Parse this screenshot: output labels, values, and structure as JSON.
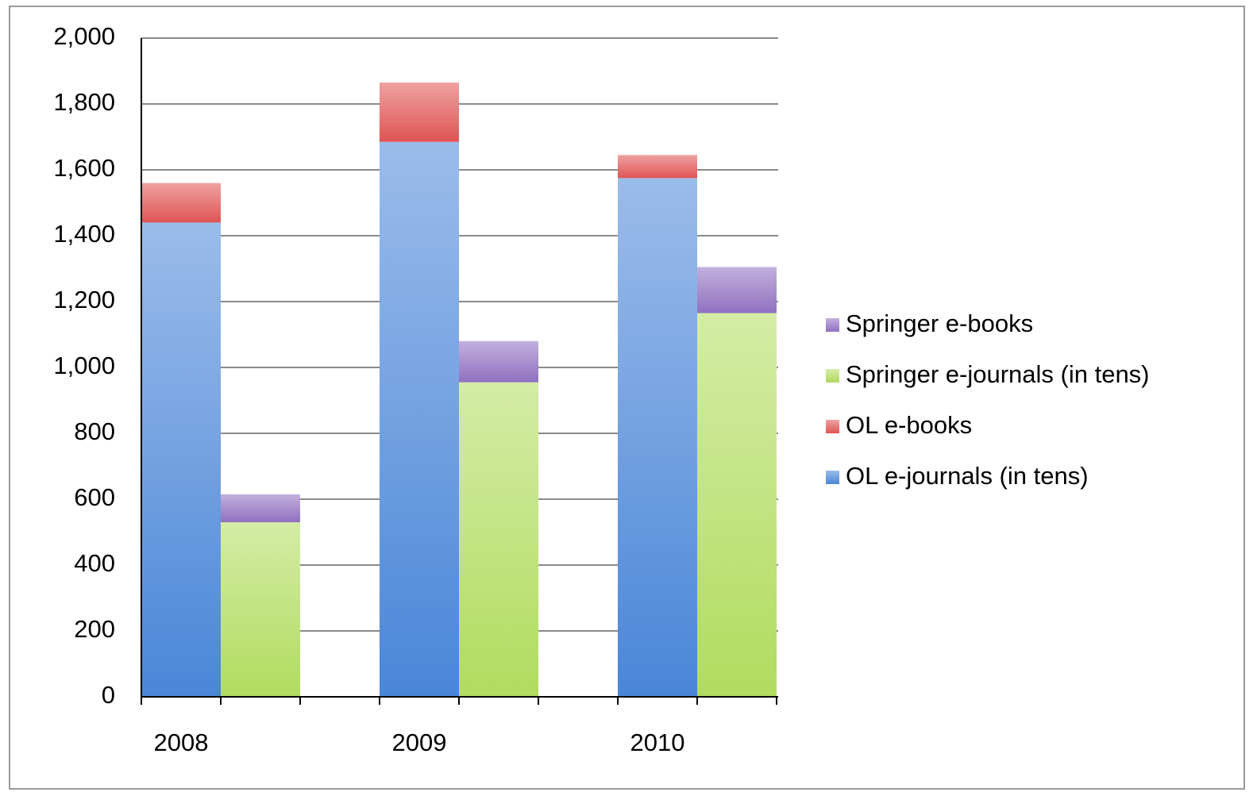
{
  "chart_data": {
    "type": "grouped-stacked-bar",
    "categories": [
      "2008",
      "2009",
      "2010"
    ],
    "stacks": [
      [
        {
          "name": "OL e-journals (in tens)",
          "color": "#4a86d8",
          "values": [
            1440,
            1685,
            1575
          ]
        },
        {
          "name": "OL e-books",
          "color": "#e05454",
          "values": [
            120,
            180,
            70
          ]
        }
      ],
      [
        {
          "name": "Springer e-journals (in tens)",
          "color": "#b0dc5e",
          "values": [
            530,
            955,
            1165
          ]
        },
        {
          "name": "Springer e-books",
          "color": "#9070c0",
          "values": [
            85,
            125,
            140
          ]
        }
      ]
    ],
    "ylim": [
      0,
      2000
    ],
    "yticks": [
      {
        "value": 0,
        "label": "0"
      },
      {
        "value": 200,
        "label": "200"
      },
      {
        "value": 400,
        "label": "400"
      },
      {
        "value": 600,
        "label": "600"
      },
      {
        "value": 800,
        "label": "800"
      },
      {
        "value": 1000,
        "label": "1,000"
      },
      {
        "value": 1200,
        "label": "1,200"
      },
      {
        "value": 1400,
        "label": "1,400"
      },
      {
        "value": 1600,
        "label": "1,600"
      },
      {
        "value": 1800,
        "label": "1,800"
      },
      {
        "value": 2000,
        "label": "2,000"
      }
    ],
    "grid": true
  }
}
